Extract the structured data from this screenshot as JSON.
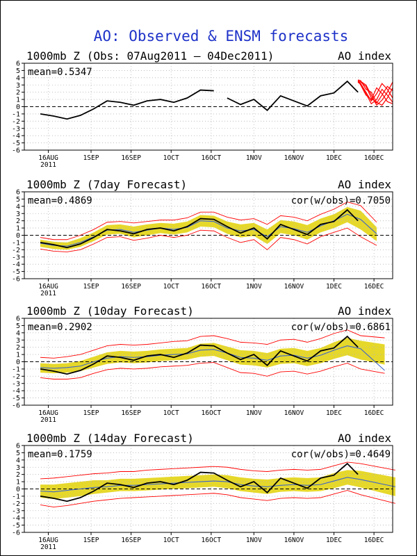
{
  "title": "AO: Observed & ENSM forecasts",
  "colors": {
    "observed": "#000000",
    "ensemble_members": "#ff0000",
    "ensemble_spread": "#e6d82a",
    "ensemble_mean": "#3c64c8",
    "zero_line": "#000000",
    "grid": "#b4b4b4",
    "title": "#1e32c8"
  },
  "x_ticks": [
    "16AUG",
    "1SEP",
    "16SEP",
    "1OCT",
    "16OCT",
    "1NOV",
    "16NOV",
    "1DEC",
    "16DEC"
  ],
  "x_tick_days": [
    9,
    25,
    40,
    55,
    70,
    86,
    101,
    116,
    131
  ],
  "x_year_label": "2011",
  "y_ticks": [
    6,
    5,
    4,
    3,
    2,
    1,
    0,
    -1,
    -2,
    -3,
    -4,
    -5,
    -6
  ],
  "chart_data": [
    {
      "type": "line",
      "panel_title": "1000mb Z (Obs: 07Aug2011 – 04Dec2011)",
      "index_label": "AO index",
      "stat_label": "mean=0.5347",
      "ylim": [
        -6,
        6
      ],
      "grid": true,
      "observed": {
        "dates": [
          "07Aug",
          "12Aug",
          "17Aug",
          "22Aug",
          "27Aug",
          "01Sep",
          "06Sep",
          "11Sep",
          "16Sep",
          "21Sep",
          "26Sep",
          "01Oct",
          "06Oct",
          "11Oct",
          "13Oct",
          "16Oct",
          "21Oct",
          "26Oct",
          "31Oct",
          "05Nov",
          "10Nov",
          "15Nov",
          "20Nov",
          "25Nov",
          "30Nov",
          "04Dec"
        ],
        "values": [
          -1.0,
          -1.3,
          -1.7,
          -1.2,
          -0.3,
          0.8,
          0.6,
          0.2,
          0.8,
          1.0,
          0.6,
          1.2,
          2.3,
          2.2,
          null,
          1.2,
          0.3,
          1.0,
          -0.5,
          1.5,
          0.8,
          0.1,
          1.5,
          1.9,
          3.5,
          2.0
        ]
      },
      "forecast_members": [
        [
          3.6,
          3.4,
          2.8,
          1.2,
          0.5,
          1.6,
          2.8,
          2.2
        ],
        [
          3.4,
          3.1,
          1.8,
          0.4,
          1.0,
          2.4,
          1.6,
          0.6
        ],
        [
          3.7,
          3.6,
          2.4,
          2.0,
          0.6,
          0.2,
          1.2,
          2.6
        ],
        [
          3.5,
          3.2,
          2.0,
          0.8,
          1.8,
          3.2,
          2.4,
          1.2
        ],
        [
          3.3,
          3.5,
          3.0,
          1.6,
          0.2,
          0.9,
          2.0,
          3.4
        ],
        [
          3.6,
          3.0,
          1.6,
          1.0,
          2.6,
          1.8,
          0.7,
          0.4
        ]
      ],
      "forecast_dates": [
        "04Dec",
        "05Dec",
        "07Dec",
        "09Dec",
        "11Dec",
        "13Dec",
        "15Dec",
        "17Dec"
      ]
    },
    {
      "type": "line",
      "panel_title": "1000mb Z (7day Forecast)",
      "index_label": "AO index",
      "stat_label": "mean=0.4869",
      "cor_label": "cor(w/obs)=0.7050",
      "ylim": [
        -6,
        6
      ],
      "grid": true,
      "observed": {
        "dates": [
          "07Aug",
          "12Aug",
          "17Aug",
          "22Aug",
          "27Aug",
          "01Sep",
          "06Sep",
          "11Sep",
          "16Sep",
          "21Sep",
          "26Sep",
          "01Oct",
          "06Oct",
          "11Oct",
          "16Oct",
          "21Oct",
          "26Oct",
          "31Oct",
          "05Nov",
          "10Nov",
          "15Nov",
          "20Nov",
          "25Nov",
          "30Nov",
          "04Dec"
        ],
        "values": [
          -1.0,
          -1.3,
          -1.7,
          -1.2,
          -0.3,
          0.8,
          0.6,
          0.2,
          0.8,
          1.0,
          0.6,
          1.2,
          2.3,
          2.2,
          1.2,
          0.3,
          1.0,
          -0.5,
          1.5,
          0.8,
          0.1,
          1.5,
          1.9,
          3.5,
          2.0
        ]
      },
      "forecast_dates": [
        "07Aug",
        "12Aug",
        "17Aug",
        "22Aug",
        "27Aug",
        "01Sep",
        "06Sep",
        "11Sep",
        "16Sep",
        "21Sep",
        "26Sep",
        "01Oct",
        "06Oct",
        "11Oct",
        "16Oct",
        "21Oct",
        "26Oct",
        "31Oct",
        "05Nov",
        "10Nov",
        "15Nov",
        "20Nov",
        "25Nov",
        "30Nov",
        "05Dec",
        "11Dec"
      ],
      "ensemble_mean": [
        -1.1,
        -1.4,
        -1.5,
        -1.0,
        -0.2,
        0.7,
        0.8,
        0.4,
        0.7,
        1.0,
        0.8,
        1.1,
        2.0,
        1.9,
        1.0,
        0.6,
        0.8,
        -0.2,
        1.2,
        0.9,
        0.4,
        1.3,
        2.0,
        2.9,
        2.2,
        0.2
      ],
      "spread_low": [
        -1.6,
        -1.9,
        -2.0,
        -1.6,
        -0.8,
        0.1,
        0.2,
        -0.3,
        0.0,
        0.3,
        0.1,
        0.4,
        1.2,
        1.1,
        0.2,
        -0.3,
        -0.1,
        -1.2,
        0.3,
        0.0,
        -0.6,
        0.4,
        1.0,
        1.8,
        0.8,
        -0.8
      ],
      "spread_high": [
        -0.6,
        -0.9,
        -1.0,
        -0.4,
        0.4,
        1.4,
        1.5,
        1.2,
        1.5,
        1.7,
        1.6,
        1.9,
        2.8,
        2.7,
        1.9,
        1.5,
        1.7,
        0.8,
        2.1,
        1.9,
        1.4,
        2.3,
        2.9,
        3.9,
        3.4,
        1.1
      ],
      "member_low": [
        -1.9,
        -2.2,
        -2.3,
        -2.0,
        -1.2,
        -0.3,
        -0.2,
        -0.7,
        -0.4,
        0.0,
        -0.3,
        0.0,
        0.7,
        0.6,
        -0.3,
        -1.0,
        -0.6,
        -2.0,
        -0.3,
        -0.6,
        -1.2,
        -0.2,
        0.4,
        1.0,
        -0.2,
        -1.4
      ],
      "member_high": [
        -0.3,
        -0.6,
        -0.6,
        0.0,
        0.8,
        1.8,
        1.9,
        1.7,
        1.9,
        2.1,
        2.1,
        2.4,
        3.2,
        3.2,
        2.5,
        2.1,
        2.3,
        1.5,
        2.7,
        2.5,
        2.0,
        2.9,
        3.6,
        4.6,
        4.1,
        1.8
      ]
    },
    {
      "type": "line",
      "panel_title": "1000mb Z (10day Forecast)",
      "index_label": "AO index",
      "stat_label": "mean=0.2902",
      "cor_label": "cor(w/obs)=0.6861",
      "ylim": [
        -6,
        6
      ],
      "grid": true,
      "observed": {
        "dates": [
          "07Aug",
          "12Aug",
          "17Aug",
          "22Aug",
          "27Aug",
          "01Sep",
          "06Sep",
          "11Sep",
          "16Sep",
          "21Sep",
          "26Sep",
          "01Oct",
          "06Oct",
          "11Oct",
          "16Oct",
          "21Oct",
          "26Oct",
          "31Oct",
          "05Nov",
          "10Nov",
          "15Nov",
          "20Nov",
          "25Nov",
          "30Nov",
          "04Dec"
        ],
        "values": [
          -1.0,
          -1.3,
          -1.7,
          -1.2,
          -0.3,
          0.8,
          0.6,
          0.2,
          0.8,
          1.0,
          0.6,
          1.2,
          2.3,
          2.2,
          1.2,
          0.3,
          1.0,
          -0.5,
          1.5,
          0.8,
          0.1,
          1.5,
          1.9,
          3.5,
          2.0
        ]
      },
      "forecast_dates": [
        "07Aug",
        "12Aug",
        "17Aug",
        "22Aug",
        "27Aug",
        "01Sep",
        "06Sep",
        "11Sep",
        "16Sep",
        "21Sep",
        "26Sep",
        "01Oct",
        "06Oct",
        "11Oct",
        "16Oct",
        "21Oct",
        "26Oct",
        "31Oct",
        "05Nov",
        "10Nov",
        "15Nov",
        "20Nov",
        "25Nov",
        "30Nov",
        "05Dec",
        "14Dec"
      ],
      "ensemble_mean": [
        -0.8,
        -0.9,
        -0.8,
        -0.6,
        0.0,
        0.5,
        0.7,
        0.6,
        0.7,
        0.9,
        1.0,
        1.1,
        1.6,
        1.7,
        1.2,
        0.6,
        0.5,
        0.2,
        0.8,
        0.9,
        0.5,
        0.9,
        1.6,
        2.2,
        1.8,
        -1.2
      ],
      "spread_low": [
        -1.5,
        -1.6,
        -1.5,
        -1.3,
        -0.8,
        -0.3,
        -0.1,
        -0.2,
        -0.1,
        0.1,
        0.2,
        0.3,
        0.7,
        0.8,
        0.2,
        -0.4,
        -0.5,
        -0.8,
        -0.3,
        -0.2,
        -0.6,
        -0.2,
        0.4,
        0.9,
        0.3,
        -0.4
      ],
      "spread_high": [
        -0.2,
        -0.3,
        -0.2,
        0.1,
        0.7,
        1.3,
        1.5,
        1.4,
        1.5,
        1.7,
        1.8,
        1.9,
        2.5,
        2.6,
        2.1,
        1.6,
        1.5,
        1.2,
        1.8,
        1.9,
        1.5,
        1.9,
        2.7,
        3.3,
        2.9,
        2.4
      ],
      "member_low": [
        -2.2,
        -2.4,
        -2.4,
        -2.2,
        -1.6,
        -1.1,
        -0.9,
        -1.0,
        -0.9,
        -0.7,
        -0.6,
        -0.5,
        -0.2,
        -0.1,
        -0.8,
        -1.5,
        -1.6,
        -2.0,
        -1.4,
        -1.3,
        -1.7,
        -1.3,
        -0.7,
        -0.2,
        -1.0,
        -1.6
      ],
      "member_high": [
        0.6,
        0.5,
        0.7,
        1.0,
        1.6,
        2.2,
        2.4,
        2.3,
        2.4,
        2.6,
        2.8,
        2.9,
        3.5,
        3.6,
        3.2,
        2.7,
        2.6,
        2.4,
        3.0,
        3.1,
        2.7,
        3.2,
        3.9,
        4.4,
        3.6,
        3.3
      ]
    },
    {
      "type": "line",
      "panel_title": "1000mb Z (14day Forecast)",
      "index_label": "AO index",
      "stat_label": "mean=0.1759",
      "cor_label": "cor(w/obs)=0.4649",
      "ylim": [
        -6,
        6
      ],
      "grid": true,
      "observed": {
        "dates": [
          "07Aug",
          "12Aug",
          "17Aug",
          "22Aug",
          "27Aug",
          "01Sep",
          "06Sep",
          "11Sep",
          "16Sep",
          "21Sep",
          "26Sep",
          "01Oct",
          "06Oct",
          "11Oct",
          "16Oct",
          "21Oct",
          "26Oct",
          "31Oct",
          "05Nov",
          "10Nov",
          "15Nov",
          "20Nov",
          "25Nov",
          "30Nov",
          "04Dec"
        ],
        "values": [
          -1.0,
          -1.3,
          -1.7,
          -1.2,
          -0.3,
          0.8,
          0.6,
          0.2,
          0.8,
          1.0,
          0.6,
          1.2,
          2.3,
          2.2,
          1.2,
          0.3,
          1.0,
          -0.5,
          1.5,
          0.8,
          0.1,
          1.5,
          1.9,
          3.5,
          2.0
        ]
      },
      "forecast_dates": [
        "07Aug",
        "12Aug",
        "17Aug",
        "22Aug",
        "27Aug",
        "01Sep",
        "06Sep",
        "11Sep",
        "16Sep",
        "21Sep",
        "26Sep",
        "01Oct",
        "06Oct",
        "11Oct",
        "16Oct",
        "21Oct",
        "26Oct",
        "31Oct",
        "05Nov",
        "10Nov",
        "15Nov",
        "20Nov",
        "25Nov",
        "30Nov",
        "05Dec",
        "18Dec"
      ],
      "ensemble_mean": [
        -0.3,
        -0.4,
        -0.2,
        0.0,
        0.2,
        0.3,
        0.5,
        0.5,
        0.6,
        0.7,
        0.8,
        0.9,
        1.0,
        1.1,
        1.0,
        0.6,
        0.4,
        0.3,
        0.5,
        0.6,
        0.5,
        0.6,
        1.1,
        1.6,
        1.3,
        0.3
      ],
      "spread_low": [
        -1.2,
        -1.4,
        -1.2,
        -1.0,
        -0.7,
        -0.5,
        -0.3,
        -0.3,
        -0.2,
        -0.1,
        0.0,
        0.1,
        0.2,
        0.3,
        0.1,
        -0.3,
        -0.5,
        -0.7,
        -0.4,
        -0.3,
        -0.4,
        -0.3,
        0.1,
        0.6,
        0.2,
        -1.0
      ],
      "spread_high": [
        0.6,
        0.6,
        0.8,
        1.0,
        1.2,
        1.2,
        1.4,
        1.4,
        1.5,
        1.6,
        1.7,
        1.8,
        1.9,
        2.0,
        1.9,
        1.6,
        1.4,
        1.3,
        1.5,
        1.6,
        1.5,
        1.6,
        2.2,
        2.6,
        2.5,
        1.6
      ],
      "member_low": [
        -2.2,
        -2.5,
        -2.3,
        -2.0,
        -1.7,
        -1.5,
        -1.3,
        -1.2,
        -1.1,
        -1.0,
        -0.9,
        -0.8,
        -0.7,
        -0.6,
        -0.8,
        -1.2,
        -1.4,
        -1.6,
        -1.3,
        -1.2,
        -1.3,
        -1.2,
        -0.7,
        -0.2,
        -0.8,
        -2.0
      ],
      "member_high": [
        1.4,
        1.5,
        1.7,
        1.9,
        2.1,
        2.2,
        2.4,
        2.4,
        2.6,
        2.7,
        2.8,
        2.9,
        3.0,
        3.1,
        3.0,
        2.7,
        2.5,
        2.4,
        2.6,
        2.7,
        2.6,
        2.7,
        3.2,
        3.7,
        3.5,
        2.6
      ]
    }
  ]
}
